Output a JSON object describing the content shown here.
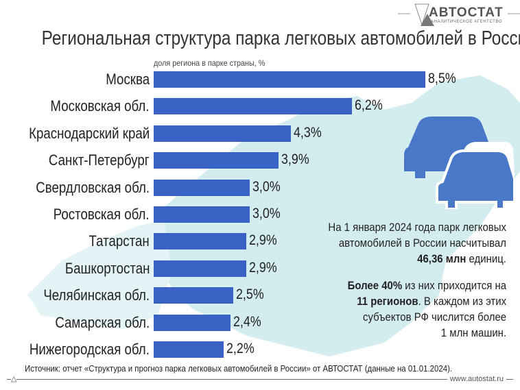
{
  "logo": {
    "name": "АВТОСТАТ",
    "tagline": "АНАЛИТИЧЕСКОЕ АГЕНТСТВО"
  },
  "chart_data": {
    "type": "bar",
    "orientation": "horizontal",
    "title": "Региональная структура парка легковых автомобилей в России",
    "subtitle": "доля региона в парке страны, %",
    "categories": [
      "Москва",
      "Московская обл.",
      "Краснодарский край",
      "Санкт-Петербург",
      "Свердловская обл.",
      "Ростовская обл.",
      "Татарстан",
      "Башкортостан",
      "Челябинская обл.",
      "Самарская обл.",
      "Нижегородская обл."
    ],
    "values": [
      8.5,
      6.2,
      4.3,
      3.9,
      3.0,
      3.0,
      2.9,
      2.9,
      2.5,
      2.4,
      2.2
    ],
    "labels": [
      "8,5%",
      "6,2%",
      "4,3%",
      "3,9%",
      "3,0%",
      "3,0%",
      "2,9%",
      "2,9%",
      "2,5%",
      "2,4%",
      "2,2%"
    ],
    "bar_color": "#3a62c4",
    "grid": false
  },
  "notes": {
    "p1_line1": "На 1 января 2024 года парк легковых",
    "p1_line2": "автомобилей в России насчитывал",
    "p1_bold": "46,36 млн",
    "p1_end": " единиц.",
    "p2_bold1": "Более 40%",
    "p2_text1": " из них приходится на",
    "p2_bold2": "11 регионов",
    "p2_text2": ". В каждом из этих",
    "p2_line3": "субъектов РФ числится более",
    "p2_line4": "1 млн машин."
  },
  "footer": {
    "source": "Источник: отчет «Структура и прогноз парка легковых автомобилей в России» от АВТОСТАТ (данные на 01.01.2024).",
    "url": "www.autostat.ru"
  },
  "colors": {
    "map": "#cfe9ee",
    "cars": "#4a78c8"
  }
}
